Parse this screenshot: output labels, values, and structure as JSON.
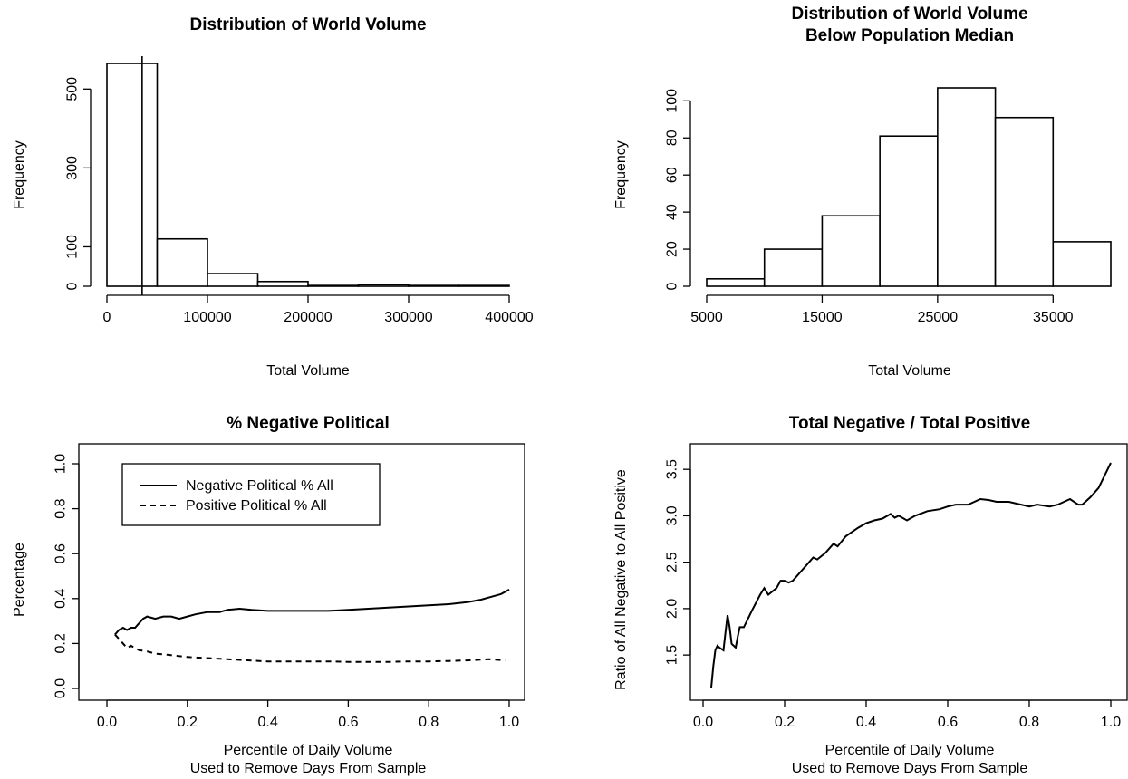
{
  "chart_data": [
    {
      "type": "bar",
      "title": "Distribution of World Volume",
      "title_line2": "",
      "xlabel": "Total Volume",
      "ylabel": "Frequency",
      "bins": [
        [
          0,
          50000
        ],
        [
          50000,
          100000
        ],
        [
          100000,
          150000
        ],
        [
          150000,
          200000
        ],
        [
          200000,
          250000
        ],
        [
          250000,
          300000
        ],
        [
          300000,
          350000
        ],
        [
          350000,
          400000
        ]
      ],
      "values": [
        565,
        120,
        32,
        12,
        2,
        4,
        2,
        2
      ],
      "xlim": [
        0,
        400000
      ],
      "ylim": [
        0,
        565
      ],
      "xticks": [
        0,
        100000,
        200000,
        300000,
        400000
      ],
      "xtick_labels": [
        "0",
        "100000",
        "200000",
        "300000",
        "400000"
      ],
      "yticks": [
        0,
        100,
        300,
        500
      ],
      "ytick_labels": [
        "0",
        "100",
        "300",
        "500"
      ],
      "vline": 35000
    },
    {
      "type": "bar",
      "title": "Distribution of World Volume",
      "title_line2": "Below Population Median",
      "xlabel": "Total Volume",
      "ylabel": "Frequency",
      "bins": [
        [
          5000,
          10000
        ],
        [
          10000,
          15000
        ],
        [
          15000,
          20000
        ],
        [
          20000,
          25000
        ],
        [
          25000,
          30000
        ],
        [
          30000,
          35000
        ],
        [
          35000,
          40000
        ]
      ],
      "values": [
        4,
        20,
        38,
        81,
        107,
        91,
        24
      ],
      "xlim": [
        5000,
        40000
      ],
      "ylim": [
        0,
        107
      ],
      "xticks": [
        5000,
        15000,
        25000,
        35000
      ],
      "xtick_labels": [
        "5000",
        "15000",
        "25000",
        "35000"
      ],
      "yticks": [
        0,
        20,
        40,
        60,
        80,
        100
      ],
      "ytick_labels": [
        "0",
        "20",
        "40",
        "60",
        "80",
        "100"
      ]
    },
    {
      "type": "line",
      "title": "% Negative Political",
      "xlabel": "Percentile of Daily Volume",
      "xlabel_line2": "Used to Remove Days From Sample",
      "ylabel": "Percentage",
      "xlim": [
        0,
        1
      ],
      "ylim": [
        0,
        1
      ],
      "xticks": [
        0,
        0.2,
        0.4,
        0.6,
        0.8,
        1
      ],
      "xtick_labels": [
        "0.0",
        "0.2",
        "0.4",
        "0.6",
        "0.8",
        "1.0"
      ],
      "yticks": [
        0,
        0.2,
        0.4,
        0.6,
        0.8,
        1
      ],
      "ytick_labels": [
        "0.0",
        "0.2",
        "0.4",
        "0.6",
        "0.8",
        "1.0"
      ],
      "legend_position": "top-left",
      "series": [
        {
          "name": "Negative Political % All",
          "dash": "solid",
          "x": [
            0.02,
            0.03,
            0.04,
            0.05,
            0.06,
            0.07,
            0.08,
            0.09,
            0.1,
            0.12,
            0.14,
            0.16,
            0.18,
            0.2,
            0.22,
            0.25,
            0.28,
            0.3,
            0.33,
            0.36,
            0.4,
            0.45,
            0.5,
            0.55,
            0.6,
            0.65,
            0.7,
            0.75,
            0.8,
            0.85,
            0.9,
            0.93,
            0.96,
            0.98,
            1.0
          ],
          "y": [
            0.24,
            0.26,
            0.27,
            0.26,
            0.27,
            0.27,
            0.29,
            0.31,
            0.32,
            0.31,
            0.32,
            0.32,
            0.31,
            0.32,
            0.33,
            0.34,
            0.34,
            0.35,
            0.355,
            0.35,
            0.345,
            0.345,
            0.345,
            0.345,
            0.35,
            0.355,
            0.36,
            0.365,
            0.37,
            0.375,
            0.385,
            0.395,
            0.41,
            0.42,
            0.44
          ]
        },
        {
          "name": "Positive Political % All",
          "dash": "dashed",
          "x": [
            0.02,
            0.03,
            0.04,
            0.05,
            0.06,
            0.07,
            0.08,
            0.1,
            0.12,
            0.15,
            0.2,
            0.25,
            0.3,
            0.35,
            0.4,
            0.45,
            0.5,
            0.55,
            0.6,
            0.65,
            0.7,
            0.75,
            0.8,
            0.85,
            0.9,
            0.95,
            0.99
          ],
          "y": [
            0.24,
            0.22,
            0.2,
            0.18,
            0.19,
            0.18,
            0.17,
            0.165,
            0.155,
            0.15,
            0.14,
            0.135,
            0.13,
            0.125,
            0.12,
            0.12,
            0.12,
            0.12,
            0.118,
            0.118,
            0.118,
            0.12,
            0.12,
            0.122,
            0.125,
            0.13,
            0.125
          ]
        }
      ]
    },
    {
      "type": "line",
      "title": "Total Negative / Total Positive",
      "xlabel": "Percentile of Daily Volume",
      "xlabel_line2": "Used to Remove Days From Sample",
      "ylabel": "Ratio of All Negative to All Positive",
      "xlim": [
        0,
        1
      ],
      "ylim": [
        1.15,
        3.57
      ],
      "xticks": [
        0,
        0.2,
        0.4,
        0.6,
        0.8,
        1
      ],
      "xtick_labels": [
        "0.0",
        "0.2",
        "0.4",
        "0.6",
        "0.8",
        "1.0"
      ],
      "yticks": [
        1.5,
        2,
        2.5,
        3,
        3.5
      ],
      "ytick_labels": [
        "1.5",
        "2.0",
        "2.5",
        "3.0",
        "3.5"
      ],
      "series": [
        {
          "name": "",
          "dash": "solid",
          "x": [
            0.02,
            0.025,
            0.03,
            0.035,
            0.04,
            0.05,
            0.055,
            0.06,
            0.065,
            0.07,
            0.075,
            0.08,
            0.085,
            0.09,
            0.1,
            0.12,
            0.14,
            0.15,
            0.16,
            0.18,
            0.19,
            0.2,
            0.21,
            0.22,
            0.24,
            0.27,
            0.28,
            0.3,
            0.32,
            0.33,
            0.35,
            0.38,
            0.4,
            0.42,
            0.44,
            0.46,
            0.47,
            0.48,
            0.5,
            0.52,
            0.55,
            0.58,
            0.6,
            0.62,
            0.65,
            0.68,
            0.7,
            0.72,
            0.75,
            0.78,
            0.8,
            0.82,
            0.85,
            0.87,
            0.9,
            0.92,
            0.93,
            0.95,
            0.97,
            0.99,
            1.0
          ],
          "y": [
            1.15,
            1.38,
            1.55,
            1.6,
            1.58,
            1.55,
            1.75,
            1.93,
            1.8,
            1.62,
            1.6,
            1.58,
            1.7,
            1.8,
            1.8,
            1.98,
            2.15,
            2.22,
            2.15,
            2.22,
            2.3,
            2.3,
            2.28,
            2.3,
            2.4,
            2.55,
            2.53,
            2.6,
            2.7,
            2.67,
            2.78,
            2.87,
            2.92,
            2.95,
            2.97,
            3.02,
            2.98,
            3.0,
            2.95,
            3.0,
            3.05,
            3.07,
            3.1,
            3.12,
            3.12,
            3.18,
            3.17,
            3.15,
            3.15,
            3.12,
            3.1,
            3.12,
            3.1,
            3.12,
            3.18,
            3.12,
            3.12,
            3.2,
            3.3,
            3.48,
            3.57
          ]
        }
      ]
    }
  ]
}
